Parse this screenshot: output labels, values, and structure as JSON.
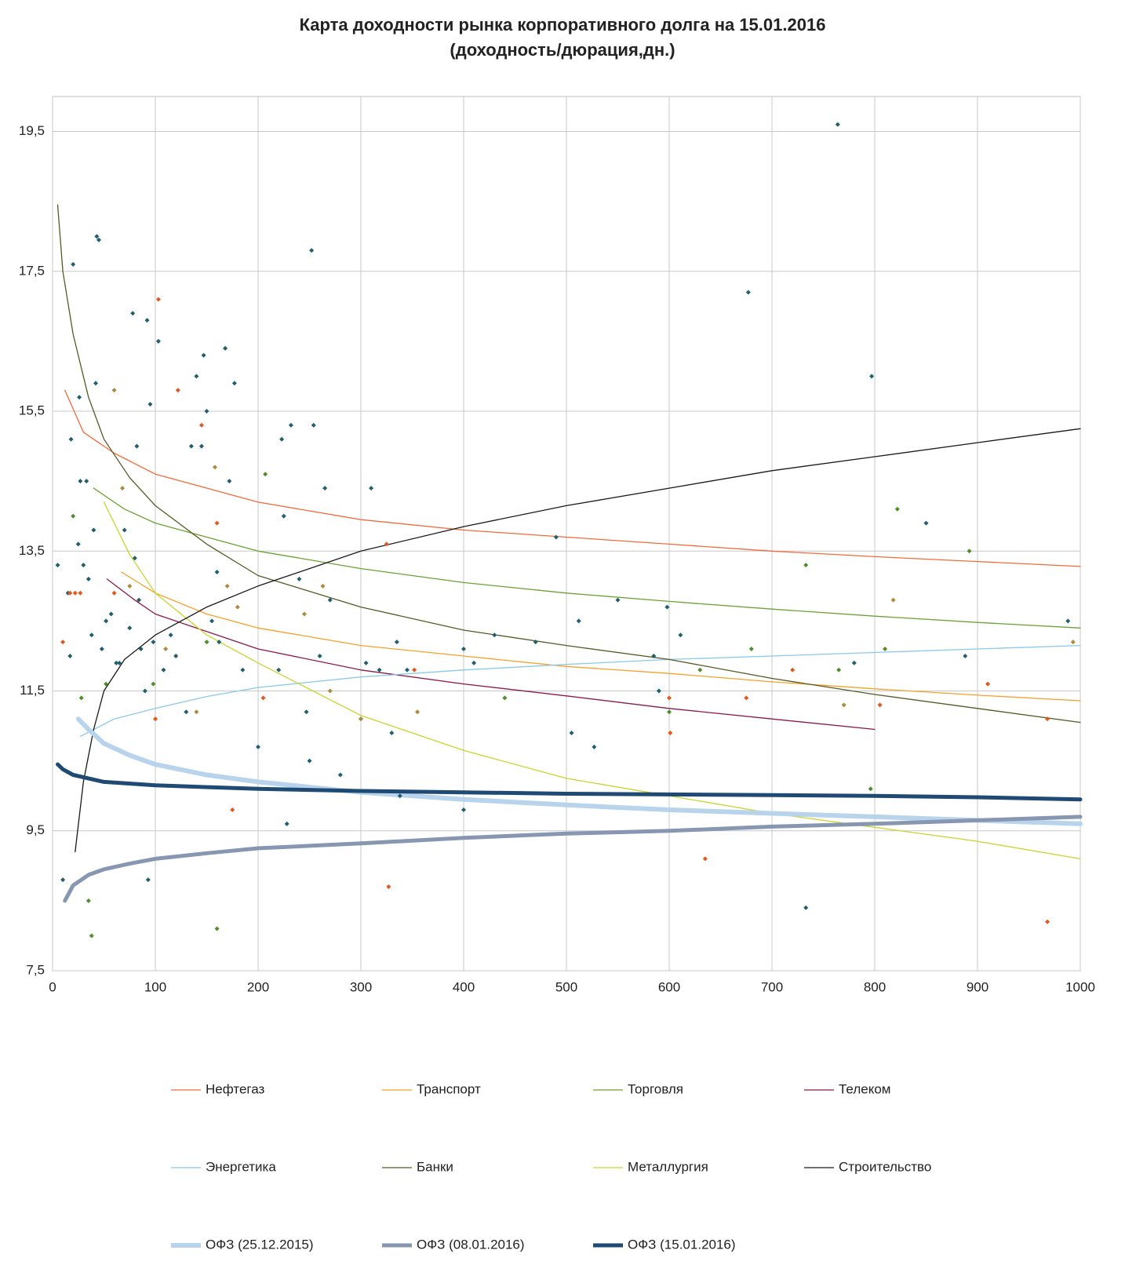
{
  "chart_data": {
    "type": "scatter",
    "title": "Карта доходности рынка корпоративного долга на 15.01.2016",
    "subtitle": "(доходность/дюрация,дн.)",
    "xlim": [
      0,
      1000
    ],
    "xticks": [
      0,
      100,
      200,
      300,
      400,
      500,
      600,
      700,
      800,
      900,
      1000
    ],
    "ylim": [
      7.5,
      20
    ],
    "yticks": [
      {
        "value": 7.5,
        "label": "7,5"
      },
      {
        "value": 9.5,
        "label": "9,5"
      },
      {
        "value": 11.5,
        "label": "11,5"
      },
      {
        "value": 13.5,
        "label": "13,5"
      },
      {
        "value": 15.5,
        "label": "15,5"
      },
      {
        "value": 17.5,
        "label": "17,5"
      },
      {
        "value": 19.5,
        "label": "19,5"
      }
    ],
    "grid": true,
    "series": [
      {
        "name": "Нефтегаз",
        "color": "#f26b3a",
        "width": 1.3,
        "x": [
          12,
          30,
          60,
          100,
          200,
          300,
          400,
          500,
          600,
          700,
          800,
          900,
          1000
        ],
        "values": [
          15.8,
          15.2,
          14.9,
          14.6,
          14.2,
          13.95,
          13.8,
          13.7,
          13.6,
          13.5,
          13.42,
          13.35,
          13.28
        ]
      },
      {
        "name": "Транспорт",
        "color": "#f7a128",
        "width": 1.3,
        "x": [
          67,
          100,
          150,
          200,
          300,
          400,
          500,
          600,
          700,
          800,
          900,
          1000
        ],
        "values": [
          13.2,
          12.9,
          12.6,
          12.4,
          12.15,
          12.0,
          11.85,
          11.75,
          11.63,
          11.53,
          11.44,
          11.36
        ]
      },
      {
        "name": "Торговля",
        "color": "#6aa332",
        "width": 1.3,
        "x": [
          40,
          70,
          100,
          150,
          200,
          300,
          400,
          500,
          600,
          700,
          800,
          900,
          1000
        ],
        "values": [
          14.4,
          14.1,
          13.9,
          13.7,
          13.5,
          13.25,
          13.05,
          12.9,
          12.78,
          12.67,
          12.57,
          12.48,
          12.4
        ]
      },
      {
        "name": "Телеком",
        "color": "#8b1a4a",
        "width": 1.3,
        "x": [
          53,
          80,
          100,
          150,
          200,
          300,
          400,
          500,
          600,
          700,
          800
        ],
        "values": [
          13.1,
          12.8,
          12.6,
          12.35,
          12.1,
          11.8,
          11.6,
          11.43,
          11.25,
          11.1,
          10.95
        ]
      },
      {
        "name": "Энергетика",
        "color": "#8cc8ea",
        "width": 1.3,
        "x": [
          27,
          60,
          100,
          150,
          200,
          300,
          400,
          500,
          600,
          700,
          800,
          900,
          1000
        ],
        "values": [
          10.85,
          11.1,
          11.25,
          11.42,
          11.55,
          11.7,
          11.8,
          11.88,
          11.95,
          12.0,
          12.05,
          12.1,
          12.15
        ]
      },
      {
        "name": "Банки",
        "color": "#555a23",
        "width": 1.3,
        "x": [
          5,
          10,
          20,
          35,
          50,
          75,
          100,
          150,
          200,
          300,
          400,
          500,
          600,
          700,
          800,
          900,
          1000
        ],
        "values": [
          18.45,
          17.5,
          16.6,
          15.7,
          15.1,
          14.55,
          14.15,
          13.6,
          13.15,
          12.7,
          12.37,
          12.15,
          11.95,
          11.68,
          11.45,
          11.25,
          11.05
        ]
      },
      {
        "name": "Металлургия",
        "color": "#c6d62a",
        "width": 1.3,
        "x": [
          50,
          75,
          100,
          150,
          200,
          300,
          400,
          500,
          600,
          700,
          800,
          900,
          1000
        ],
        "values": [
          14.2,
          13.45,
          12.9,
          12.3,
          11.9,
          11.15,
          10.65,
          10.25,
          10.0,
          9.75,
          9.55,
          9.35,
          9.1
        ]
      },
      {
        "name": "Строительство",
        "color": "#1a1a1a",
        "width": 1.3,
        "x": [
          22,
          30,
          40,
          50,
          70,
          100,
          150,
          200,
          300,
          400,
          500,
          600,
          700,
          800,
          900,
          1000
        ],
        "values": [
          9.2,
          10.2,
          10.95,
          11.5,
          11.95,
          12.3,
          12.7,
          13.0,
          13.5,
          13.85,
          14.15,
          14.4,
          14.65,
          14.85,
          15.05,
          15.25
        ]
      },
      {
        "name": "ОФЗ (25.12.2015)",
        "color": "#b8d4ec",
        "width": 6,
        "x": [
          25,
          35,
          50,
          75,
          100,
          150,
          200,
          300,
          400,
          500,
          600,
          700,
          800,
          900,
          1000
        ],
        "values": [
          11.1,
          10.95,
          10.75,
          10.58,
          10.45,
          10.3,
          10.2,
          10.05,
          9.95,
          9.87,
          9.8,
          9.75,
          9.7,
          9.65,
          9.6
        ]
      },
      {
        "name": "ОФЗ (08.01.2016)",
        "color": "#8797b2",
        "width": 5,
        "x": [
          12,
          20,
          35,
          50,
          75,
          100,
          150,
          200,
          300,
          400,
          500,
          600,
          700,
          800,
          900,
          1000
        ],
        "values": [
          8.5,
          8.72,
          8.87,
          8.95,
          9.03,
          9.1,
          9.18,
          9.25,
          9.32,
          9.4,
          9.46,
          9.5,
          9.56,
          9.6,
          9.65,
          9.7
        ]
      },
      {
        "name": "ОФЗ (15.01.2016)",
        "color": "#1f4a73",
        "width": 5,
        "x": [
          5,
          10,
          20,
          50,
          100,
          200,
          300,
          400,
          500,
          600,
          700,
          800,
          900,
          1000
        ],
        "values": [
          10.45,
          10.38,
          10.3,
          10.2,
          10.15,
          10.1,
          10.07,
          10.05,
          10.03,
          10.02,
          10.01,
          10.0,
          9.98,
          9.95
        ]
      }
    ],
    "points": [
      {
        "color": "#1f5f6e",
        "x": [
          5,
          10,
          15,
          17,
          18,
          20,
          25,
          26,
          27,
          30,
          33,
          35,
          38,
          40,
          42,
          43,
          45,
          48,
          52,
          57,
          62,
          65,
          70,
          75,
          78,
          80,
          82,
          84,
          86,
          90,
          92,
          93,
          95,
          98,
          103,
          108,
          115,
          120,
          130,
          135,
          140,
          145,
          147,
          150,
          155,
          160,
          162,
          168,
          172,
          177,
          185,
          200,
          220,
          223,
          225,
          228,
          232,
          240,
          247,
          250,
          252,
          254,
          260,
          265,
          270,
          280,
          300,
          305,
          310,
          318,
          330,
          335,
          338,
          345,
          400,
          400,
          410,
          430,
          470,
          490,
          505,
          512,
          527,
          550,
          585,
          590,
          598,
          611,
          677,
          733,
          764,
          780,
          797,
          850,
          888,
          988
        ],
        "values": [
          13.3,
          8.8,
          12.9,
          12.0,
          15.1,
          17.6,
          13.6,
          15.7,
          14.5,
          13.3,
          14.5,
          13.1,
          12.3,
          13.8,
          15.9,
          18.0,
          17.95,
          12.1,
          12.5,
          12.6,
          11.9,
          11.9,
          13.8,
          12.4,
          16.9,
          13.4,
          15.0,
          12.8,
          12.1,
          11.5,
          16.8,
          8.8,
          15.6,
          12.2,
          16.5,
          11.8,
          12.3,
          12.0,
          11.2,
          15.0,
          16.0,
          15.0,
          16.3,
          15.5,
          12.5,
          13.2,
          12.2,
          16.4,
          14.5,
          15.9,
          11.8,
          10.7,
          11.8,
          15.1,
          14.0,
          9.6,
          15.3,
          13.1,
          11.2,
          10.5,
          17.8,
          15.3,
          12.0,
          14.4,
          12.8,
          10.3,
          11.1,
          11.9,
          14.4,
          11.8,
          10.9,
          12.2,
          10.0,
          11.8,
          12.1,
          9.8,
          11.9,
          12.3,
          12.2,
          13.7,
          10.9,
          12.5,
          10.7,
          12.8,
          12.0,
          11.5,
          12.7,
          12.3,
          17.2,
          8.4,
          19.6,
          11.9,
          16.0,
          13.9,
          12.0,
          12.5
        ]
      },
      {
        "color": "#e2571e",
        "x": [
          10,
          17,
          22,
          27,
          60,
          100,
          103,
          122,
          145,
          160,
          175,
          205,
          325,
          327,
          352,
          600,
          601,
          635,
          675,
          720,
          805,
          910,
          968,
          968
        ],
        "values": [
          12.2,
          12.9,
          12.9,
          12.9,
          12.9,
          11.1,
          17.1,
          15.8,
          15.3,
          13.9,
          9.8,
          11.4,
          13.6,
          8.7,
          11.8,
          11.4,
          10.9,
          9.1,
          11.4,
          11.8,
          11.3,
          11.6,
          8.2,
          11.1
        ]
      },
      {
        "color": "#b08a3c",
        "x": [
          60,
          68,
          75,
          110,
          140,
          158,
          170,
          180,
          245,
          263,
          270,
          300,
          355,
          770,
          818,
          993
        ],
        "values": [
          15.8,
          14.4,
          13.0,
          12.1,
          11.2,
          14.7,
          13.0,
          12.7,
          12.6,
          13.0,
          11.5,
          11.1,
          11.2,
          11.3,
          12.8,
          12.2
        ]
      },
      {
        "color": "#4f8f2a",
        "x": [
          20,
          28,
          35,
          38,
          52,
          98,
          150,
          160,
          207,
          440,
          600,
          630,
          680,
          733,
          765,
          796,
          810,
          822,
          892
        ],
        "values": [
          14.0,
          11.4,
          8.5,
          8.0,
          11.6,
          11.6,
          12.2,
          8.1,
          14.6,
          11.4,
          11.2,
          11.8,
          12.1,
          13.3,
          11.8,
          10.1,
          12.1,
          14.1,
          13.5
        ]
      }
    ]
  }
}
